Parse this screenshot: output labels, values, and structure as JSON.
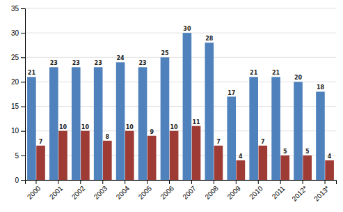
{
  "chart_data": {
    "type": "bar",
    "categories": [
      "2000",
      "2001",
      "2002",
      "2003",
      "2004",
      "2005",
      "2006",
      "2007",
      "2008",
      "2009",
      "2010",
      "2011",
      "2012*",
      "2013*"
    ],
    "series": [
      {
        "color": "#4F81BD",
        "values": [
          21,
          23,
          23,
          23,
          24,
          23,
          25,
          30,
          28,
          17,
          21,
          21,
          20,
          18
        ]
      },
      {
        "color": "#9E3B35",
        "values": [
          7,
          10,
          10,
          8,
          10,
          9,
          10,
          11,
          7,
          4,
          7,
          5,
          5,
          4
        ]
      }
    ],
    "ylim": [
      0,
      35
    ],
    "yticks": [
      0,
      5,
      10,
      15,
      20,
      25,
      30,
      35
    ],
    "grid": true,
    "data_labels": true
  }
}
